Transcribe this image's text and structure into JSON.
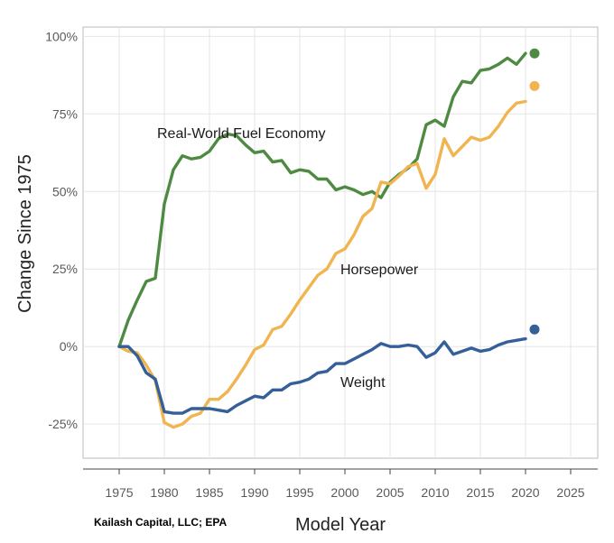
{
  "chart_data": {
    "type": "line",
    "xlabel": "Model Year",
    "ylabel": "Change Since 1975",
    "xlim": [
      1971,
      2028
    ],
    "ylim": [
      -36,
      103
    ],
    "x_ticks": [
      "1975",
      "1980",
      "1985",
      "1990",
      "1995",
      "2000",
      "2005",
      "2010",
      "2015",
      "2020",
      "2025"
    ],
    "y_ticks": [
      "100%",
      "75%",
      "50%",
      "25%",
      "0%",
      "-25%"
    ],
    "grid": true,
    "x": [
      1975,
      1976,
      1977,
      1978,
      1979,
      1980,
      1981,
      1982,
      1983,
      1984,
      1985,
      1986,
      1987,
      1988,
      1989,
      1990,
      1991,
      1992,
      1993,
      1994,
      1995,
      1996,
      1997,
      1998,
      1999,
      2000,
      2001,
      2002,
      2003,
      2004,
      2005,
      2006,
      2007,
      2008,
      2009,
      2010,
      2011,
      2012,
      2013,
      2014,
      2015,
      2016,
      2017,
      2018,
      2019,
      2020
    ],
    "series": [
      {
        "name": "Real-World Fuel Economy",
        "color": "#4f8a43",
        "values": [
          0,
          8.5,
          15,
          21,
          22,
          46,
          57,
          61.5,
          60.5,
          61,
          63,
          67,
          68.5,
          68,
          65,
          62.5,
          63,
          59.5,
          60,
          56,
          57,
          56.5,
          54,
          54,
          50.5,
          51.5,
          50.5,
          49,
          50,
          48,
          53,
          55.5,
          57.5,
          60.5,
          71.5,
          73,
          71,
          80.5,
          85.5,
          85,
          89,
          89.5,
          91,
          93,
          91,
          94.5
        ],
        "projected": {
          "x": 2021,
          "value": 94.5
        }
      },
      {
        "name": "Horsepower",
        "color": "#f0b550",
        "values": [
          0,
          -1.5,
          -2,
          -6,
          -11,
          -24.5,
          -26,
          -25,
          -22.5,
          -21.5,
          -17,
          -17,
          -14.5,
          -10.5,
          -6,
          -1,
          0.5,
          5.5,
          6.5,
          10.5,
          15,
          19,
          23,
          25,
          30,
          31.5,
          36,
          42,
          44.5,
          53,
          52.5,
          55,
          58,
          59,
          51,
          55.5,
          67,
          61.5,
          64.5,
          67.5,
          66.5,
          67.5,
          71,
          75.5,
          78.5,
          79
        ],
        "projected": {
          "x": 2021,
          "value": 84
        }
      },
      {
        "name": "Weight",
        "color": "#345f99",
        "values": [
          0,
          0,
          -3,
          -8.5,
          -10.5,
          -21,
          -21.5,
          -21.5,
          -20,
          -20,
          -20,
          -20.5,
          -21,
          -19,
          -17.5,
          -16,
          -16.5,
          -14,
          -14,
          -12,
          -11.5,
          -10.5,
          -8.5,
          -8,
          -5.5,
          -5.5,
          -4,
          -2.5,
          -1,
          1,
          0,
          0,
          0.5,
          0,
          -3.5,
          -2,
          1.5,
          -2.5,
          -1.5,
          -0.5,
          -1.5,
          -1,
          0.5,
          1.5,
          2,
          2.5
        ],
        "projected": {
          "x": 2021,
          "value": 5.5
        }
      }
    ]
  },
  "annotations": {
    "fuel_economy": "Real-World Fuel Economy",
    "horsepower": "Horsepower",
    "weight": "Weight"
  },
  "source": "Kailash Capital, LLC; EPA"
}
